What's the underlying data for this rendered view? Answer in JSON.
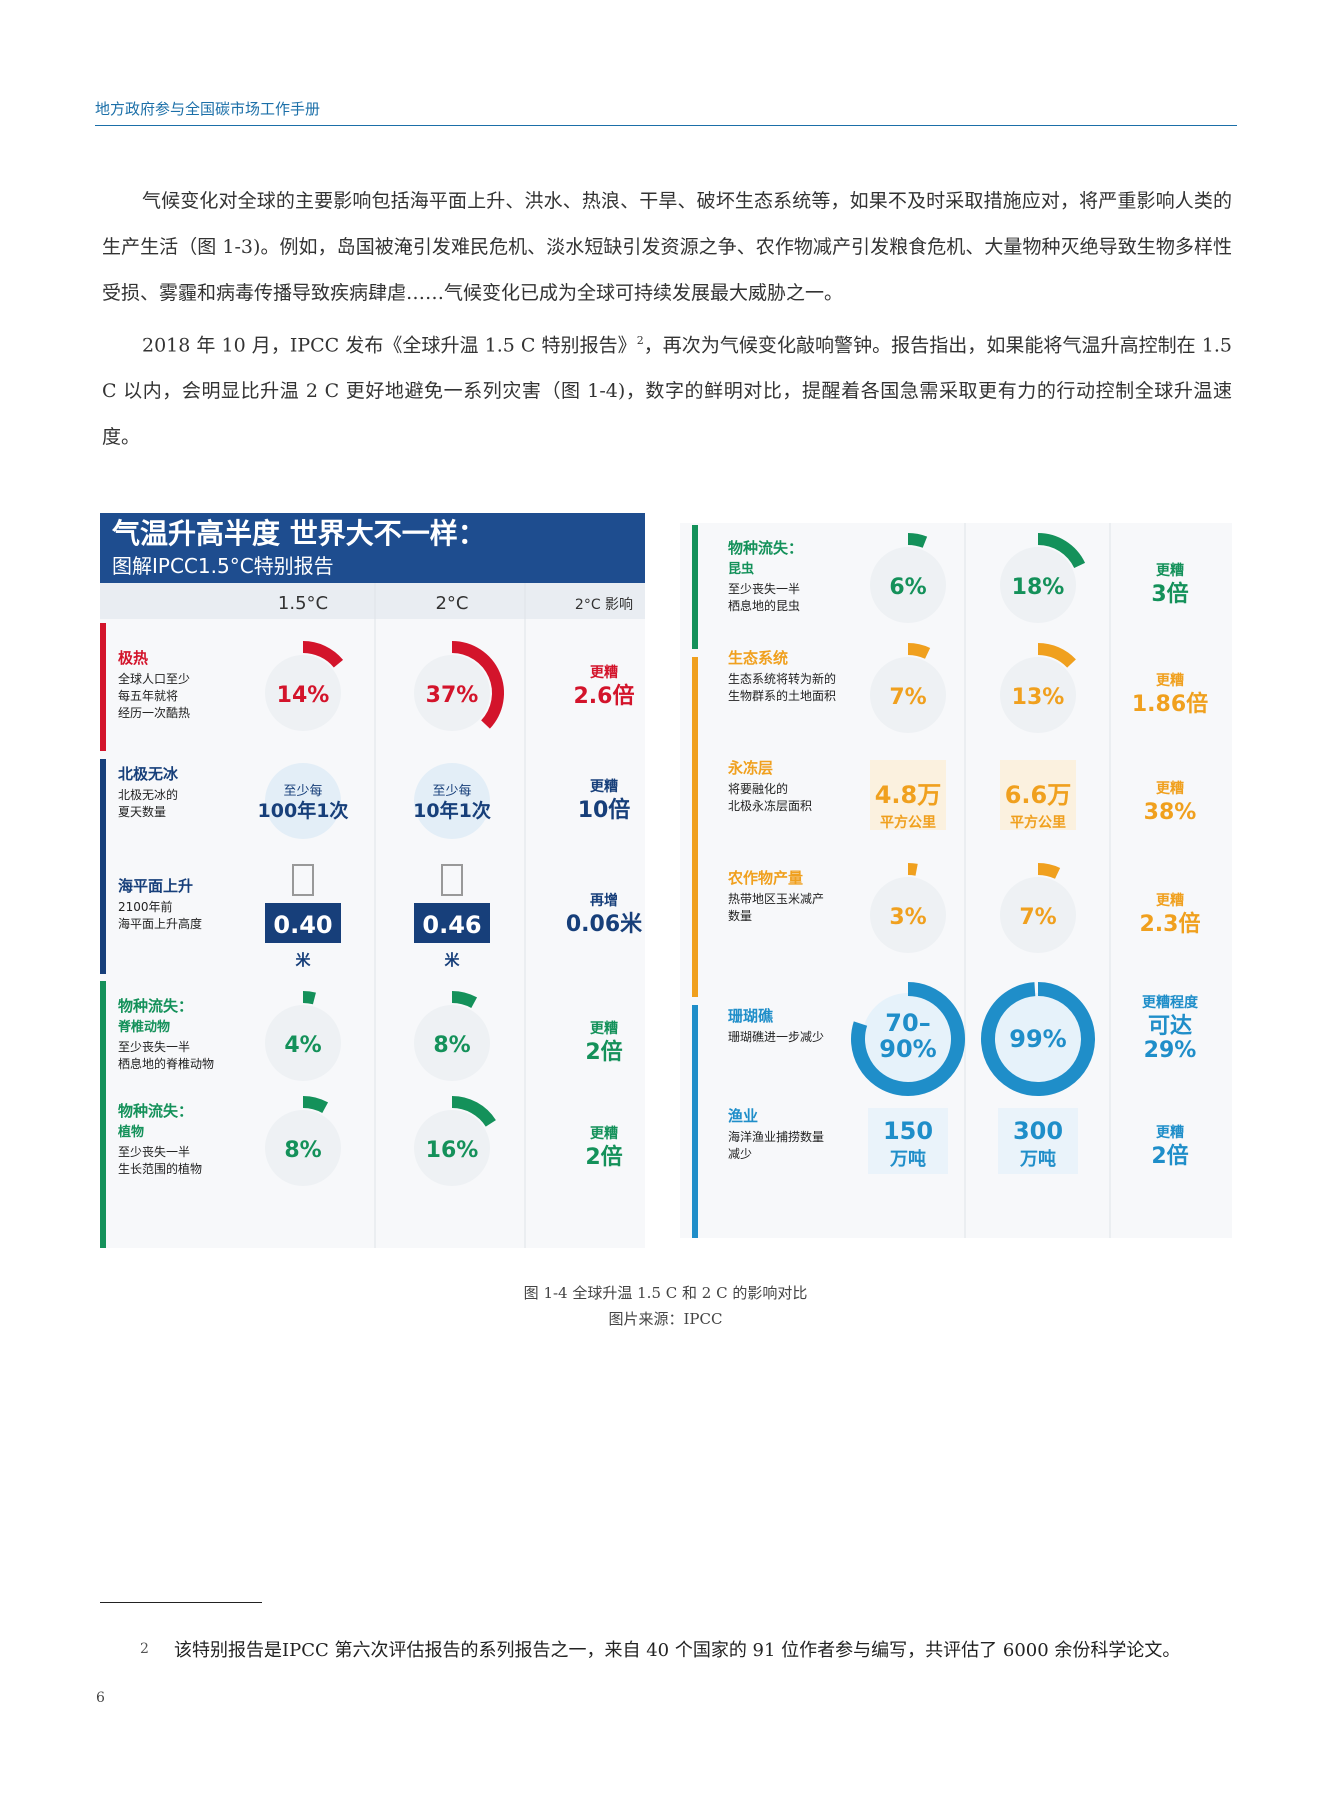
{
  "header": {
    "title": "地方政府参与全国碳市场工作手册"
  },
  "body": {
    "p1": "气候变化对全球的主要影响包括海平面上升、洪水、热浪、干旱、破坏生态系统等，如果不及时采取措施应对，将严重影响人类的生产生活（图 1-3)。例如，岛国被淹引发难民危机、淡水短缺引发资源之争、农作物减产引发粮食危机、大量物种灭绝导致生物多样性受损、雾霾和病毒传播导致疾病肆虐……气候变化已成为全球可持续发展最大威胁之一。",
    "p2_a": "2018 年 10 月，IPCC 发布《全球升温 1.5 C 特别报告》",
    "p2_sup": "2",
    "p2_b": "，再次为气候变化敲响警钟。报告指出，如果能将气温升高控制在 1.5 C 以内，会明显比升温 2 C 更好地避免一系列灾害（图 1-4)，数字的鲜明对比，提醒着各国急需采取更有力的行动控制全球升温速度。"
  },
  "infographic": {
    "title": "气温升高半度 世界大不一样：",
    "subtitle": "图解IPCC1.5°C特别报告",
    "col_15": "1.5°C",
    "col_2": "2°C",
    "col_impact": "2°C 影响",
    "left_rows": [
      {
        "title": "极热",
        "desc1": "全球人口至少",
        "desc2": "每五年就将",
        "desc3": "经历一次酷热",
        "v15": "14%",
        "v2": "37%",
        "f15": 0.14,
        "f2": 0.37,
        "imp1": "更糟",
        "imp2": "2.6倍",
        "color": "#d3142b"
      },
      {
        "title": "北极无冰",
        "desc1": "北极无冰的",
        "desc2": "夏天数量",
        "desc3": "",
        "v15a": "至少每",
        "v15b": "100年1次",
        "v2a": "至少每",
        "v2b": "10年1次",
        "imp1": "更糟",
        "imp2": "10倍",
        "color": "#173f7a"
      },
      {
        "title": "海平面上升",
        "desc1": "2100年前",
        "desc2": "海平面上升高度",
        "desc3": "",
        "v15": "0.40",
        "v2": "0.46",
        "unit": "米",
        "imp1": "再增",
        "imp2": "0.06米",
        "color": "#173f7a"
      },
      {
        "title": "物种流失：",
        "sub": "脊椎动物",
        "desc1": "至少丧失一半",
        "desc2": "栖息地的脊椎动物",
        "v15": "4%",
        "v2": "8%",
        "f15": 0.04,
        "f2": 0.08,
        "imp1": "更糟",
        "imp2": "2倍",
        "color": "#14915a"
      },
      {
        "title": "物种流失：",
        "sub": "植物",
        "desc1": "至少丧失一半",
        "desc2": "生长范围的植物",
        "v15": "8%",
        "v2": "16%",
        "f15": 0.08,
        "f2": 0.16,
        "imp1": "更糟",
        "imp2": "2倍",
        "color": "#14915a"
      }
    ],
    "right_rows": [
      {
        "title": "物种流失：",
        "sub": "昆虫",
        "desc1": "至少丧失一半",
        "desc2": "栖息地的昆虫",
        "v15": "6%",
        "v2": "18%",
        "f15": 0.06,
        "f2": 0.18,
        "imp1": "更糟",
        "imp2": "3倍",
        "color": "#14915a"
      },
      {
        "title": "生态系统",
        "desc1": "生态系统将转为新的",
        "desc2": "生物群系的土地面积",
        "v15": "7%",
        "v2": "13%",
        "f15": 0.07,
        "f2": 0.13,
        "imp1": "更糟",
        "imp2": "1.86倍",
        "color": "#f0a01e"
      },
      {
        "title": "永冻层",
        "desc1": "将要融化的",
        "desc2": "北极永冻层面积",
        "v15": "4.8万",
        "v2": "6.6万",
        "unit": "平方公里",
        "imp1": "更糟",
        "imp2": "38%",
        "color": "#f0a01e"
      },
      {
        "title": "农作物产量",
        "desc1": "热带地区玉米减产",
        "desc2": "数量",
        "v15": "3%",
        "v2": "7%",
        "f15": 0.03,
        "f2": 0.07,
        "imp1": "更糟",
        "imp2": "2.3倍",
        "color": "#f0a01e"
      },
      {
        "title": "珊瑚礁",
        "desc1": "珊瑚礁进一步减少",
        "desc2": "",
        "v15a": "70–",
        "v15b": "90%",
        "v2": "99%",
        "f15": 0.8,
        "f2": 0.99,
        "imp1": "更糟程度",
        "imp2": "可达",
        "imp3": "29%",
        "color": "#1f8ec9"
      },
      {
        "title": "渔业",
        "desc1": "海洋渔业捕捞数量",
        "desc2": "减少",
        "v15a": "150",
        "v15b": "万吨",
        "v2a": "300",
        "v2b": "万吨",
        "imp1": "更糟",
        "imp2": "2倍",
        "color": "#1f8ec9"
      }
    ]
  },
  "figure": {
    "caption": "图 1-4 全球升温 1.5 C 和 2 C 的影响对比",
    "source": "图片来源：IPCC"
  },
  "footnote": {
    "num": "2",
    "text": "该特别报告是IPCC 第六次评估报告的系列报告之一，来自 40 个国家的 91 位作者参与编写，共评估了 6000 余份科学论文。"
  },
  "page_number": "6"
}
